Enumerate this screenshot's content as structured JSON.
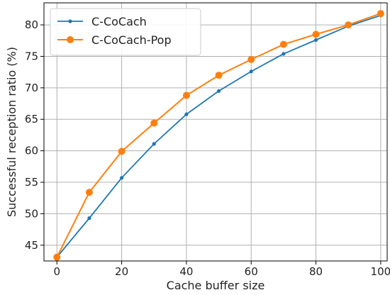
{
  "chart_data": {
    "type": "line",
    "title": "",
    "xlabel": "Cache buffer size",
    "ylabel": "Successful reception ratio (%)",
    "xlim": [
      -4,
      102
    ],
    "ylim": [
      42.5,
      83.5
    ],
    "xticks": [
      0,
      20,
      40,
      60,
      80,
      100
    ],
    "yticks": [
      45,
      50,
      55,
      60,
      65,
      70,
      75,
      80
    ],
    "grid": true,
    "legend_position": "top-left",
    "x": [
      0,
      10,
      20,
      30,
      40,
      50,
      60,
      70,
      80,
      90,
      100
    ],
    "series": [
      {
        "name": "C-CoCach",
        "color": "#1f77b4",
        "marker": "small-circle",
        "values": [
          43.1,
          49.3,
          55.7,
          61.1,
          65.8,
          69.5,
          72.6,
          75.4,
          77.6,
          79.8,
          81.5
        ]
      },
      {
        "name": "C-CoCach-Pop",
        "color": "#ff7f0e",
        "marker": "large-circle",
        "values": [
          43.1,
          53.4,
          59.9,
          64.4,
          68.8,
          72.0,
          74.5,
          76.9,
          78.5,
          80.0,
          81.8
        ]
      }
    ]
  }
}
